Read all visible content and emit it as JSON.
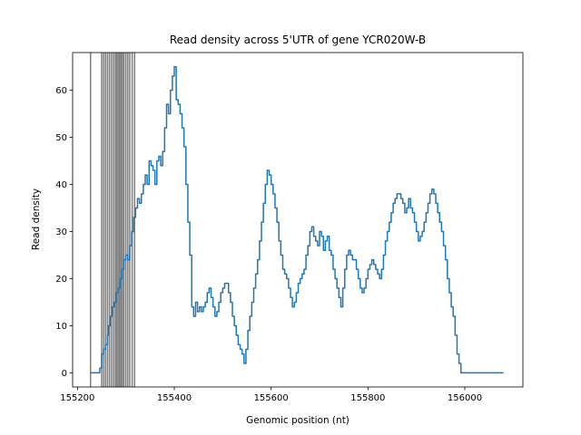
{
  "chart_data": {
    "type": "line",
    "title": "Read density across 5'UTR of gene YCR020W-B",
    "xlabel": "Genomic position (nt)",
    "ylabel": "Read density",
    "xlim": [
      155190,
      156120
    ],
    "ylim": [
      -3,
      68
    ],
    "xticks": [
      155200,
      155400,
      155600,
      155800,
      156000
    ],
    "yticks": [
      0,
      10,
      20,
      30,
      40,
      50,
      60
    ],
    "grid": false,
    "series_color": "#1f77b4",
    "vline_color": "#000000",
    "vlines": [
      155227,
      155250,
      155254,
      155258,
      155262,
      155266,
      155270,
      155274,
      155278,
      155281,
      155284,
      155287,
      155290,
      155293,
      155296,
      155300,
      155304,
      155308,
      155313,
      155318
    ],
    "series": [
      {
        "x": [
          155227,
          155244,
          155246,
          155250,
          155254,
          155258,
          155262,
          155264,
          155268,
          155272,
          155276,
          155280,
          155284,
          155288,
          155292,
          155296,
          155300,
          155304,
          155308,
          155312,
          155316,
          155320,
          155324,
          155328,
          155332,
          155336,
          155340,
          155344,
          155348,
          155352,
          155356,
          155360,
          155364,
          155368,
          155372,
          155376,
          155380,
          155384,
          155388,
          155392,
          155396,
          155400,
          155404,
          155408,
          155412,
          155416,
          155420,
          155424,
          155428,
          155432,
          155436,
          155440,
          155444,
          155448,
          155452,
          155456,
          155460,
          155464,
          155468,
          155472,
          155476,
          155480,
          155484,
          155488,
          155492,
          155496,
          155500,
          155504,
          155508,
          155512,
          155516,
          155520,
          155524,
          155528,
          155532,
          155536,
          155540,
          155544,
          155548,
          155552,
          155556,
          155560,
          155564,
          155568,
          155572,
          155576,
          155580,
          155584,
          155588,
          155592,
          155596,
          155600,
          155604,
          155608,
          155612,
          155616,
          155620,
          155624,
          155628,
          155632,
          155636,
          155640,
          155644,
          155648,
          155652,
          155656,
          155660,
          155664,
          155668,
          155672,
          155676,
          155680,
          155684,
          155688,
          155692,
          155696,
          155700,
          155704,
          155708,
          155712,
          155716,
          155720,
          155724,
          155728,
          155732,
          155736,
          155740,
          155744,
          155748,
          155752,
          155756,
          155760,
          155764,
          155768,
          155772,
          155776,
          155780,
          155784,
          155788,
          155792,
          155796,
          155800,
          155804,
          155808,
          155812,
          155816,
          155820,
          155824,
          155828,
          155832,
          155836,
          155840,
          155844,
          155848,
          155852,
          155856,
          155860,
          155864,
          155868,
          155872,
          155876,
          155880,
          155884,
          155888,
          155892,
          155896,
          155900,
          155904,
          155908,
          155912,
          155916,
          155920,
          155924,
          155928,
          155932,
          155936,
          155940,
          155944,
          155948,
          155952,
          155956,
          155960,
          155964,
          155968,
          155972,
          155976,
          155980,
          155984,
          155988,
          155992,
          155996,
          156000,
          156004,
          156008,
          156012,
          156016,
          156020,
          156080
        ],
        "y": [
          0,
          0,
          1,
          4,
          5,
          6,
          8,
          10,
          12,
          14,
          15,
          17,
          18,
          20,
          22,
          24,
          25,
          24,
          27,
          30,
          33,
          35,
          37,
          36,
          38,
          40,
          42,
          40,
          45,
          44,
          43,
          40,
          45,
          46,
          44,
          47,
          52,
          57,
          55,
          60,
          63,
          65,
          58,
          57,
          55,
          52,
          48,
          40,
          32,
          25,
          14,
          12,
          15,
          13,
          14,
          13,
          14,
          15,
          17,
          18,
          16,
          14,
          12,
          13,
          15,
          17,
          18,
          19,
          19,
          17,
          15,
          12,
          10,
          8,
          6,
          5,
          4,
          2,
          5,
          9,
          12,
          15,
          18,
          21,
          24,
          28,
          32,
          36,
          40,
          43,
          42,
          40,
          38,
          35,
          32,
          28,
          25,
          22,
          21,
          20,
          18,
          16,
          14,
          15,
          17,
          19,
          20,
          21,
          22,
          25,
          27,
          30,
          31,
          29,
          28,
          27,
          30,
          29,
          26,
          28,
          29,
          26,
          25,
          22,
          20,
          18,
          16,
          14,
          18,
          22,
          25,
          26,
          25,
          24,
          24,
          22,
          20,
          18,
          17,
          18,
          20,
          22,
          23,
          24,
          23,
          22,
          21,
          20,
          22,
          25,
          28,
          30,
          32,
          34,
          36,
          37,
          38,
          38,
          37,
          36,
          34,
          35,
          37,
          35,
          34,
          32,
          30,
          28,
          29,
          30,
          32,
          34,
          36,
          38,
          39,
          38,
          36,
          34,
          32,
          30,
          27,
          24,
          20,
          17,
          14,
          12,
          8,
          4,
          2,
          0,
          0,
          0,
          0,
          0,
          0,
          0,
          0,
          0
        ]
      }
    ]
  }
}
